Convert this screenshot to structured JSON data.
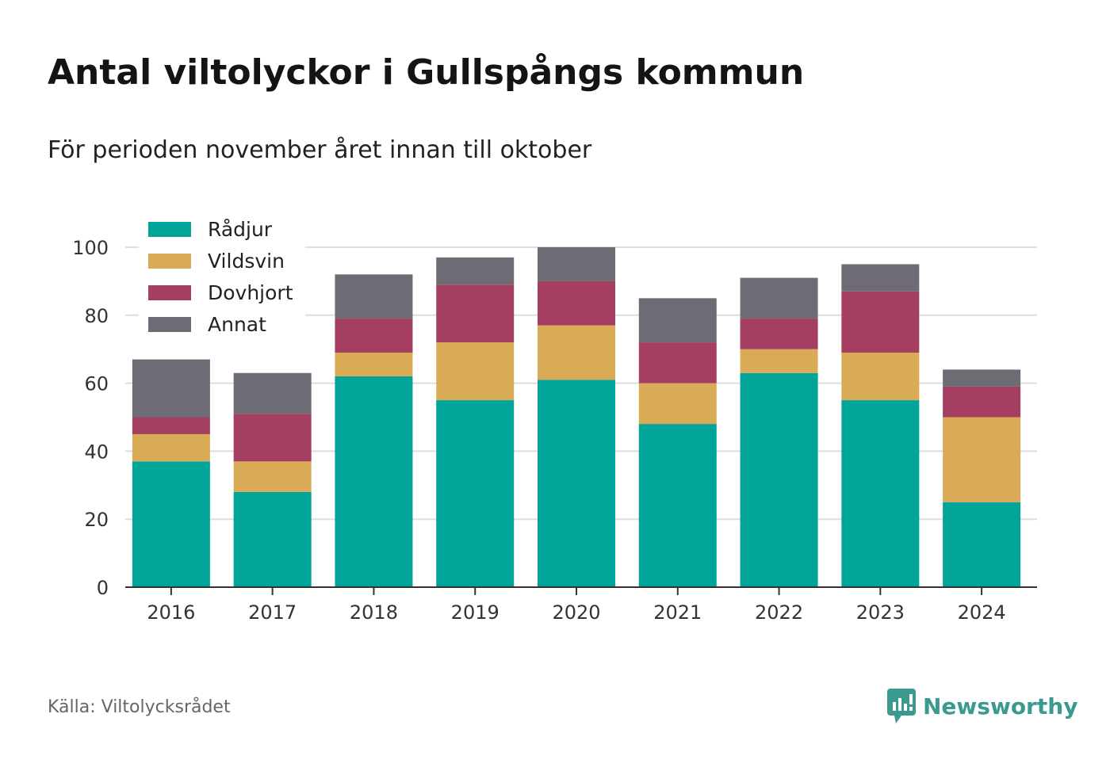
{
  "title": "Antal viltolyckor i Gullspångs kommun",
  "subtitle": "För perioden november året innan till oktober",
  "source": "Källa: Viltolycksrådet",
  "brand": {
    "name": "Newsworthy",
    "color": "#3a9a8f"
  },
  "chart_data": {
    "type": "bar",
    "stacked": true,
    "categories": [
      "2016",
      "2017",
      "2018",
      "2019",
      "2020",
      "2021",
      "2022",
      "2023",
      "2024"
    ],
    "series": [
      {
        "name": "Rådjur",
        "color": "#00a499",
        "values": [
          37,
          28,
          62,
          55,
          61,
          48,
          63,
          55,
          25
        ]
      },
      {
        "name": "Vildsvin",
        "color": "#d9ab57",
        "values": [
          8,
          9,
          7,
          17,
          16,
          12,
          7,
          14,
          25
        ]
      },
      {
        "name": "Dovhjort",
        "color": "#a43f62",
        "values": [
          5,
          14,
          10,
          17,
          13,
          12,
          9,
          18,
          9
        ]
      },
      {
        "name": "Annat",
        "color": "#6e6b74",
        "values": [
          17,
          12,
          13,
          8,
          10,
          13,
          12,
          8,
          5
        ]
      }
    ],
    "ylim": [
      0,
      100
    ],
    "yticks": [
      "0",
      "20",
      "40",
      "60",
      "80",
      "100"
    ],
    "grid": true,
    "legend": "top-left"
  }
}
